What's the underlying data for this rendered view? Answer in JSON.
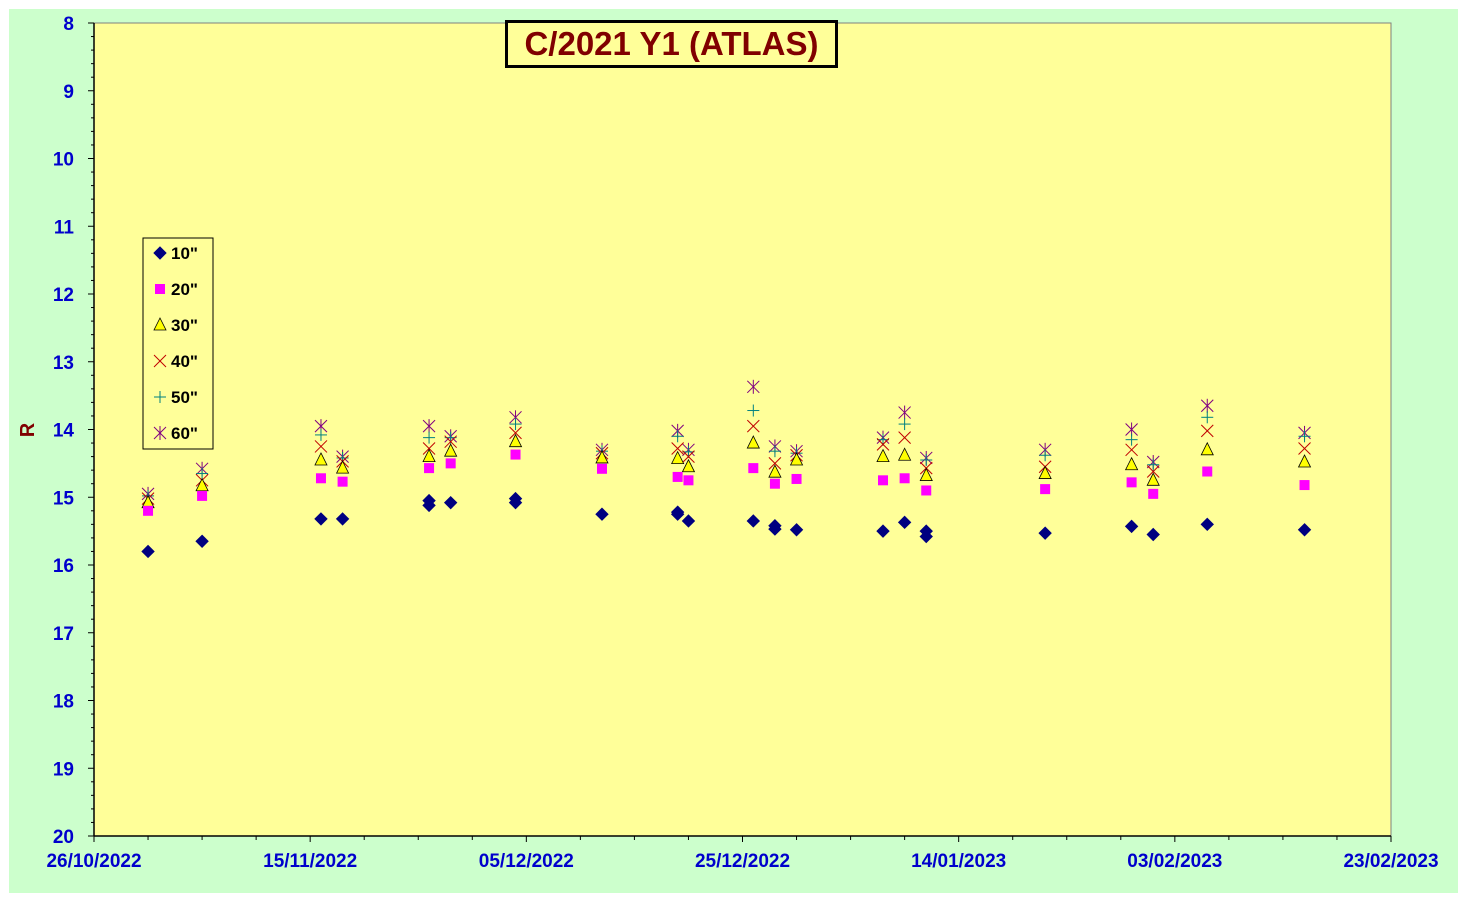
{
  "colors": {
    "background": "#ccffcc",
    "plot_area": "#ffff99",
    "title": "#800000",
    "tick_labels": "#0000cc",
    "series_10": "#000080",
    "series_20": "#ff00ff",
    "series_30": "#ffff00",
    "series_40": "#c00000",
    "series_50": "#008080",
    "series_60": "#800080"
  },
  "chart_data": {
    "type": "scatter",
    "title": "C/2021 Y1 (ATLAS)",
    "xlabel": "",
    "ylabel": "R",
    "x_range": [
      "26/10/2022",
      "23/02/2023"
    ],
    "x_tick_labels": [
      "26/10/2022",
      "15/11/2022",
      "05/12/2022",
      "25/12/2022",
      "14/01/2023",
      "03/02/2023",
      "23/02/2023"
    ],
    "y_range": [
      8,
      20
    ],
    "y_inverted": true,
    "y_ticks": [
      8,
      9,
      10,
      11,
      12,
      13,
      14,
      15,
      16,
      17,
      18,
      19,
      20
    ],
    "grid": false,
    "legend_position": "left",
    "series": [
      {
        "name": "10\"",
        "marker": "diamond",
        "points": [
          [
            "31/10/2022",
            15.8
          ],
          [
            "05/11/2022",
            15.65
          ],
          [
            "16/11/2022",
            15.32
          ],
          [
            "18/11/2022",
            15.32
          ],
          [
            "26/11/2022",
            15.12
          ],
          [
            "26/11/2022",
            15.05
          ],
          [
            "28/11/2022",
            15.08
          ],
          [
            "04/12/2022",
            15.08
          ],
          [
            "04/12/2022",
            15.02
          ],
          [
            "12/12/2022",
            15.25
          ],
          [
            "19/12/2022",
            15.22
          ],
          [
            "19/12/2022",
            15.25
          ],
          [
            "20/12/2022",
            15.35
          ],
          [
            "26/12/2022",
            15.35
          ],
          [
            "28/12/2022",
            15.42
          ],
          [
            "28/12/2022",
            15.47
          ],
          [
            "30/12/2022",
            15.48
          ],
          [
            "07/01/2023",
            15.5
          ],
          [
            "09/01/2023",
            15.37
          ],
          [
            "11/01/2023",
            15.5
          ],
          [
            "11/01/2023",
            15.58
          ],
          [
            "22/01/2023",
            15.53
          ],
          [
            "30/01/2023",
            15.43
          ],
          [
            "01/02/2023",
            15.55
          ],
          [
            "06/02/2023",
            15.4
          ],
          [
            "15/02/2023",
            15.48
          ]
        ]
      },
      {
        "name": "20\"",
        "marker": "square",
        "points": [
          [
            "31/10/2022",
            15.2
          ],
          [
            "05/11/2022",
            14.98
          ],
          [
            "16/11/2022",
            14.72
          ],
          [
            "18/11/2022",
            14.77
          ],
          [
            "26/11/2022",
            14.57
          ],
          [
            "28/11/2022",
            14.5
          ],
          [
            "04/12/2022",
            14.37
          ],
          [
            "12/12/2022",
            14.58
          ],
          [
            "19/12/2022",
            14.7
          ],
          [
            "20/12/2022",
            14.75
          ],
          [
            "26/12/2022",
            14.57
          ],
          [
            "28/12/2022",
            14.8
          ],
          [
            "30/12/2022",
            14.73
          ],
          [
            "07/01/2023",
            14.75
          ],
          [
            "09/01/2023",
            14.72
          ],
          [
            "11/01/2023",
            14.9
          ],
          [
            "22/01/2023",
            14.88
          ],
          [
            "30/01/2023",
            14.78
          ],
          [
            "01/02/2023",
            14.95
          ],
          [
            "06/02/2023",
            14.62
          ],
          [
            "15/02/2023",
            14.82
          ]
        ]
      },
      {
        "name": "30\"",
        "marker": "triangle",
        "points": [
          [
            "31/10/2022",
            15.08
          ],
          [
            "05/11/2022",
            14.83
          ],
          [
            "16/11/2022",
            14.45
          ],
          [
            "18/11/2022",
            14.57
          ],
          [
            "26/11/2022",
            14.4
          ],
          [
            "28/11/2022",
            14.32
          ],
          [
            "04/12/2022",
            14.18
          ],
          [
            "12/12/2022",
            14.42
          ],
          [
            "19/12/2022",
            14.43
          ],
          [
            "20/12/2022",
            14.55
          ],
          [
            "26/12/2022",
            14.2
          ],
          [
            "28/12/2022",
            14.63
          ],
          [
            "30/12/2022",
            14.45
          ],
          [
            "07/01/2023",
            14.4
          ],
          [
            "09/01/2023",
            14.38
          ],
          [
            "11/01/2023",
            14.68
          ],
          [
            "22/01/2023",
            14.65
          ],
          [
            "30/01/2023",
            14.52
          ],
          [
            "01/02/2023",
            14.75
          ],
          [
            "06/02/2023",
            14.3
          ],
          [
            "15/02/2023",
            14.48
          ]
        ]
      },
      {
        "name": "40\"",
        "marker": "x",
        "points": [
          [
            "31/10/2022",
            15.02
          ],
          [
            "05/11/2022",
            14.75
          ],
          [
            "16/11/2022",
            14.25
          ],
          [
            "18/11/2022",
            14.47
          ],
          [
            "26/11/2022",
            14.28
          ],
          [
            "28/11/2022",
            14.18
          ],
          [
            "04/12/2022",
            14.05
          ],
          [
            "12/12/2022",
            14.35
          ],
          [
            "19/12/2022",
            14.28
          ],
          [
            "20/12/2022",
            14.4
          ],
          [
            "26/12/2022",
            13.95
          ],
          [
            "28/12/2022",
            14.5
          ],
          [
            "30/12/2022",
            14.38
          ],
          [
            "07/01/2023",
            14.22
          ],
          [
            "09/01/2023",
            14.12
          ],
          [
            "11/01/2023",
            14.57
          ],
          [
            "22/01/2023",
            14.55
          ],
          [
            "30/01/2023",
            14.3
          ],
          [
            "01/02/2023",
            14.62
          ],
          [
            "06/02/2023",
            14.02
          ],
          [
            "15/02/2023",
            14.28
          ]
        ]
      },
      {
        "name": "50\"",
        "marker": "plus",
        "points": [
          [
            "31/10/2022",
            14.98
          ],
          [
            "05/11/2022",
            14.65
          ],
          [
            "16/11/2022",
            14.08
          ],
          [
            "18/11/2022",
            14.42
          ],
          [
            "26/11/2022",
            14.12
          ],
          [
            "28/11/2022",
            14.12
          ],
          [
            "04/12/2022",
            13.92
          ],
          [
            "12/12/2022",
            14.32
          ],
          [
            "19/12/2022",
            14.1
          ],
          [
            "20/12/2022",
            14.33
          ],
          [
            "26/12/2022",
            13.72
          ],
          [
            "28/12/2022",
            14.32
          ],
          [
            "30/12/2022",
            14.35
          ],
          [
            "07/01/2023",
            14.15
          ],
          [
            "09/01/2023",
            13.92
          ],
          [
            "11/01/2023",
            14.45
          ],
          [
            "22/01/2023",
            14.38
          ],
          [
            "30/01/2023",
            14.15
          ],
          [
            "01/02/2023",
            14.52
          ],
          [
            "06/02/2023",
            13.82
          ],
          [
            "15/02/2023",
            14.1
          ]
        ]
      },
      {
        "name": "60\"",
        "marker": "star",
        "points": [
          [
            "31/10/2022",
            14.95
          ],
          [
            "05/11/2022",
            14.58
          ],
          [
            "16/11/2022",
            13.95
          ],
          [
            "18/11/2022",
            14.4
          ],
          [
            "26/11/2022",
            13.95
          ],
          [
            "28/11/2022",
            14.1
          ],
          [
            "04/12/2022",
            13.82
          ],
          [
            "12/12/2022",
            14.3
          ],
          [
            "19/12/2022",
            14.02
          ],
          [
            "20/12/2022",
            14.3
          ],
          [
            "26/12/2022",
            13.37
          ],
          [
            "28/12/2022",
            14.25
          ],
          [
            "30/12/2022",
            14.32
          ],
          [
            "07/01/2023",
            14.12
          ],
          [
            "09/01/2023",
            13.75
          ],
          [
            "11/01/2023",
            14.42
          ],
          [
            "22/01/2023",
            14.3
          ],
          [
            "30/01/2023",
            14.0
          ],
          [
            "01/02/2023",
            14.48
          ],
          [
            "06/02/2023",
            13.65
          ],
          [
            "15/02/2023",
            14.05
          ]
        ]
      }
    ]
  }
}
